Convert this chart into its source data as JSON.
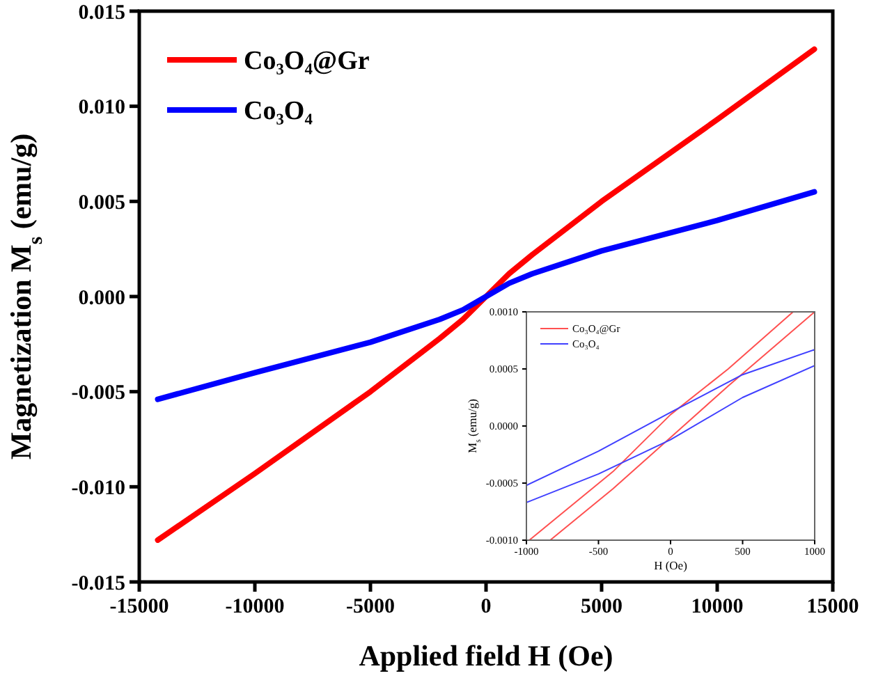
{
  "chart_data": [
    {
      "type": "line",
      "xlabel": "Applied field H (Oe)",
      "ylabel": "Magnetization M$_{s}$ (emu/g)",
      "xlim": [
        -15000,
        15000
      ],
      "xticks": [
        -15000,
        -10000,
        -5000,
        0,
        5000,
        10000,
        15000
      ],
      "ylim": [
        -0.015,
        0.015
      ],
      "yticks": [
        {
          "value": -0.015,
          "label": "-0.015"
        },
        {
          "value": -0.01,
          "label": "-0.010"
        },
        {
          "value": -0.005,
          "label": "-0.005"
        },
        {
          "value": 0,
          "label": "0.000"
        },
        {
          "value": 0.005,
          "label": "0.005"
        },
        {
          "value": 0.01,
          "label": "0.010"
        },
        {
          "value": 0.015,
          "label": "0.015"
        }
      ],
      "legend": "top left",
      "series": [
        {
          "name": "Co₃O₄@Gr",
          "color": "#ff0000",
          "x": [
            -14200,
            -10000,
            -5000,
            -2000,
            -1000,
            0,
            1000,
            2000,
            5000,
            10000,
            14200
          ],
          "values": [
            -0.0128,
            -0.0093,
            -0.005,
            -0.0022,
            -0.0012,
            0,
            0.0012,
            0.0022,
            0.005,
            0.0093,
            0.013
          ]
        },
        {
          "name": "Co₃O₄",
          "color": "#0000ff",
          "x": [
            -14200,
            -10000,
            -5000,
            -2000,
            -1000,
            0,
            1000,
            2000,
            5000,
            10000,
            14200
          ],
          "values": [
            -0.0054,
            -0.004,
            -0.0024,
            -0.0012,
            -0.0007,
            0,
            0.0007,
            0.0012,
            0.0024,
            0.004,
            0.0055
          ]
        }
      ]
    },
    {
      "type": "line",
      "xlabel": "H (Oe)",
      "ylabel": "M$_{s}$ (emu/g)",
      "xlim": [
        -1000,
        1000
      ],
      "xticks": [
        -1000,
        -500,
        0,
        500,
        1000
      ],
      "ylim": [
        -0.001,
        0.001
      ],
      "yticks": [
        {
          "value": -0.001,
          "label": "-0.0010"
        },
        {
          "value": -0.0005,
          "label": "-0.0005"
        },
        {
          "value": 0,
          "label": "0.0000"
        },
        {
          "value": 0.0005,
          "label": "0.0005"
        },
        {
          "value": 0.001,
          "label": "0.0010"
        }
      ],
      "legend": "top left",
      "series": [
        {
          "name": "Co₃O₄@Gr",
          "color": "#ff5050",
          "x": [
            -835,
            -400,
            0,
            400,
            1000,
            850,
            400,
            0,
            -400,
            -980
          ],
          "values": [
            -0.001,
            -0.00055,
            -0.0001,
            0.00035,
            0.001,
            0.001,
            0.0005,
            0.0001,
            -0.0004,
            -0.001
          ]
        },
        {
          "name": "Co₃O₄",
          "color": "#4040ff",
          "x": [
            -1000,
            -500,
            0,
            500,
            1000,
            1000,
            500,
            0,
            -500,
            -1000
          ],
          "values": [
            -0.00067,
            -0.00042,
            -0.00012,
            0.00025,
            0.00053,
            0.00067,
            0.00045,
            0.00012,
            -0.00022,
            -0.00052
          ]
        }
      ]
    }
  ]
}
